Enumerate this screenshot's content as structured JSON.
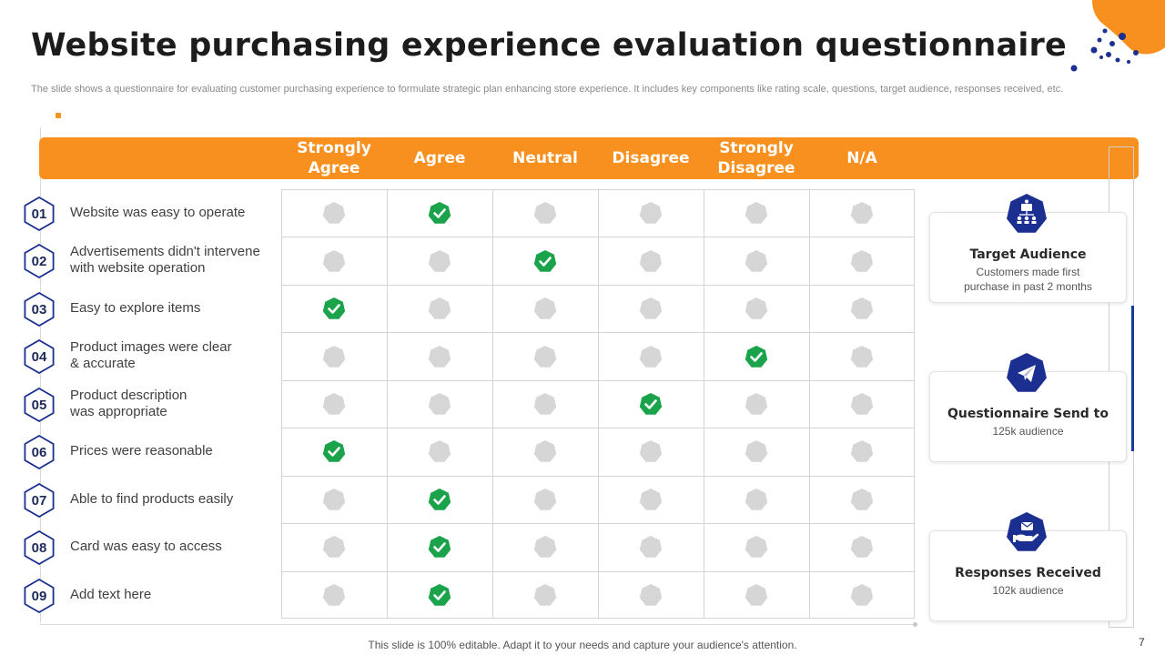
{
  "title": "Website purchasing experience evaluation questionnaire",
  "subtitle": "The slide shows a questionnaire for evaluating customer purchasing experience to formulate strategic plan enhancing store experience. It includes key components like rating scale, questions, target audience, responses received, etc.",
  "columns": [
    {
      "label_line1": "Strongly",
      "label_line2": "Agree"
    },
    {
      "label_line1": "Agree",
      "label_line2": ""
    },
    {
      "label_line1": "Neutral",
      "label_line2": ""
    },
    {
      "label_line1": "Disagree",
      "label_line2": ""
    },
    {
      "label_line1": "Strongly",
      "label_line2": "Disagree"
    },
    {
      "label_line1": "N/A",
      "label_line2": ""
    }
  ],
  "questions": [
    {
      "number": "01",
      "text_line1": "Website was easy to operate",
      "text_line2": "",
      "selected_column": 1
    },
    {
      "number": "02",
      "text_line1": "Advertisements didn't intervene",
      "text_line2": "with website operation",
      "selected_column": 2
    },
    {
      "number": "03",
      "text_line1": "Easy to explore items",
      "text_line2": "",
      "selected_column": 0
    },
    {
      "number": "04",
      "text_line1": "Product images were clear",
      "text_line2": "& accurate",
      "selected_column": 4
    },
    {
      "number": "05",
      "text_line1": "Product description",
      "text_line2": "was appropriate",
      "selected_column": 3
    },
    {
      "number": "06",
      "text_line1": "Prices were reasonable",
      "text_line2": "",
      "selected_column": 0
    },
    {
      "number": "07",
      "text_line1": "Able to find products easily",
      "text_line2": "",
      "selected_column": 1
    },
    {
      "number": "08",
      "text_line1": "Card was easy to access",
      "text_line2": "",
      "selected_column": 1
    },
    {
      "number": "09",
      "text_line1": "Add text here",
      "text_line2": "",
      "selected_column": 1
    }
  ],
  "cards": [
    {
      "title": "Target Audience",
      "desc_line1": "Customers made first",
      "desc_line2": "purchase in past 2 months",
      "icon": "audience-network-icon"
    },
    {
      "title": "Questionnaire  Send to",
      "desc_line1": "125k audience",
      "desc_line2": "",
      "icon": "paper-plane-icon"
    },
    {
      "title": "Responses Received",
      "desc_line1": "102k audience",
      "desc_line2": "",
      "icon": "hand-message-icon"
    }
  ],
  "footer": "This slide is 100% editable. Adapt it to your needs and capture your audience's attention.",
  "page_number": "7",
  "colors": {
    "accent_orange": "#f7901e",
    "navy": "#1a2f8f",
    "check_green": "#1aa34a",
    "empty_grey": "#d6d6d6"
  }
}
